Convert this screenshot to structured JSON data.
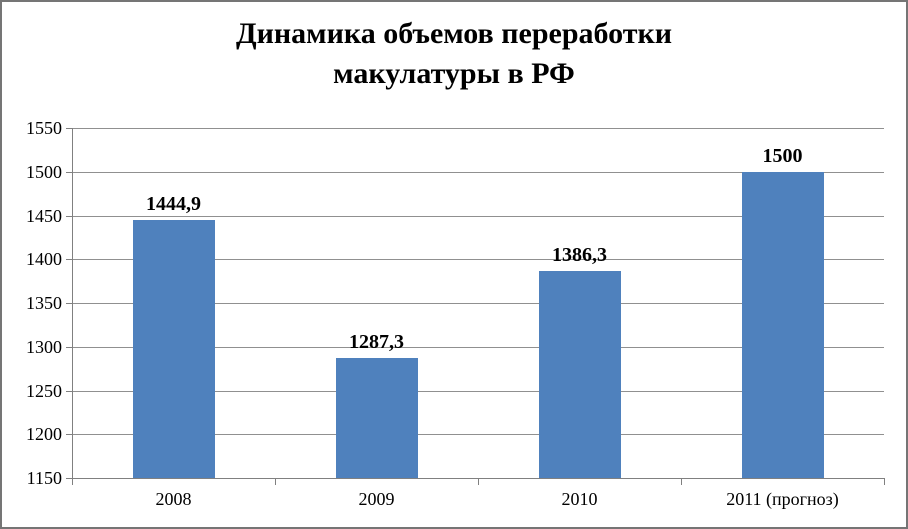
{
  "chart_data": {
    "type": "bar",
    "title": "Динамика объемов переработки макулатуры в РФ",
    "title_lines": [
      "Динамика объемов переработки",
      "макулатуры в РФ"
    ],
    "categories": [
      "2008",
      "2009",
      "2010",
      "2011 (прогноз)"
    ],
    "values": [
      1444.9,
      1287.3,
      1386.3,
      1500
    ],
    "value_labels": [
      "1444,9",
      "1287,3",
      "1386,3",
      "1500"
    ],
    "ylim": [
      1150,
      1550
    ],
    "ytick_step": 50,
    "yticks": [
      1150,
      1200,
      1250,
      1300,
      1350,
      1400,
      1450,
      1500,
      1550
    ],
    "xlabel": "",
    "ylabel": "",
    "grid": true,
    "legend": false,
    "colors": {
      "bar": "#4F81BD",
      "gridline": "#909090",
      "axis": "#808080",
      "text": "#000000",
      "frame_border": "#757575",
      "background": "#FFFFFF"
    }
  }
}
